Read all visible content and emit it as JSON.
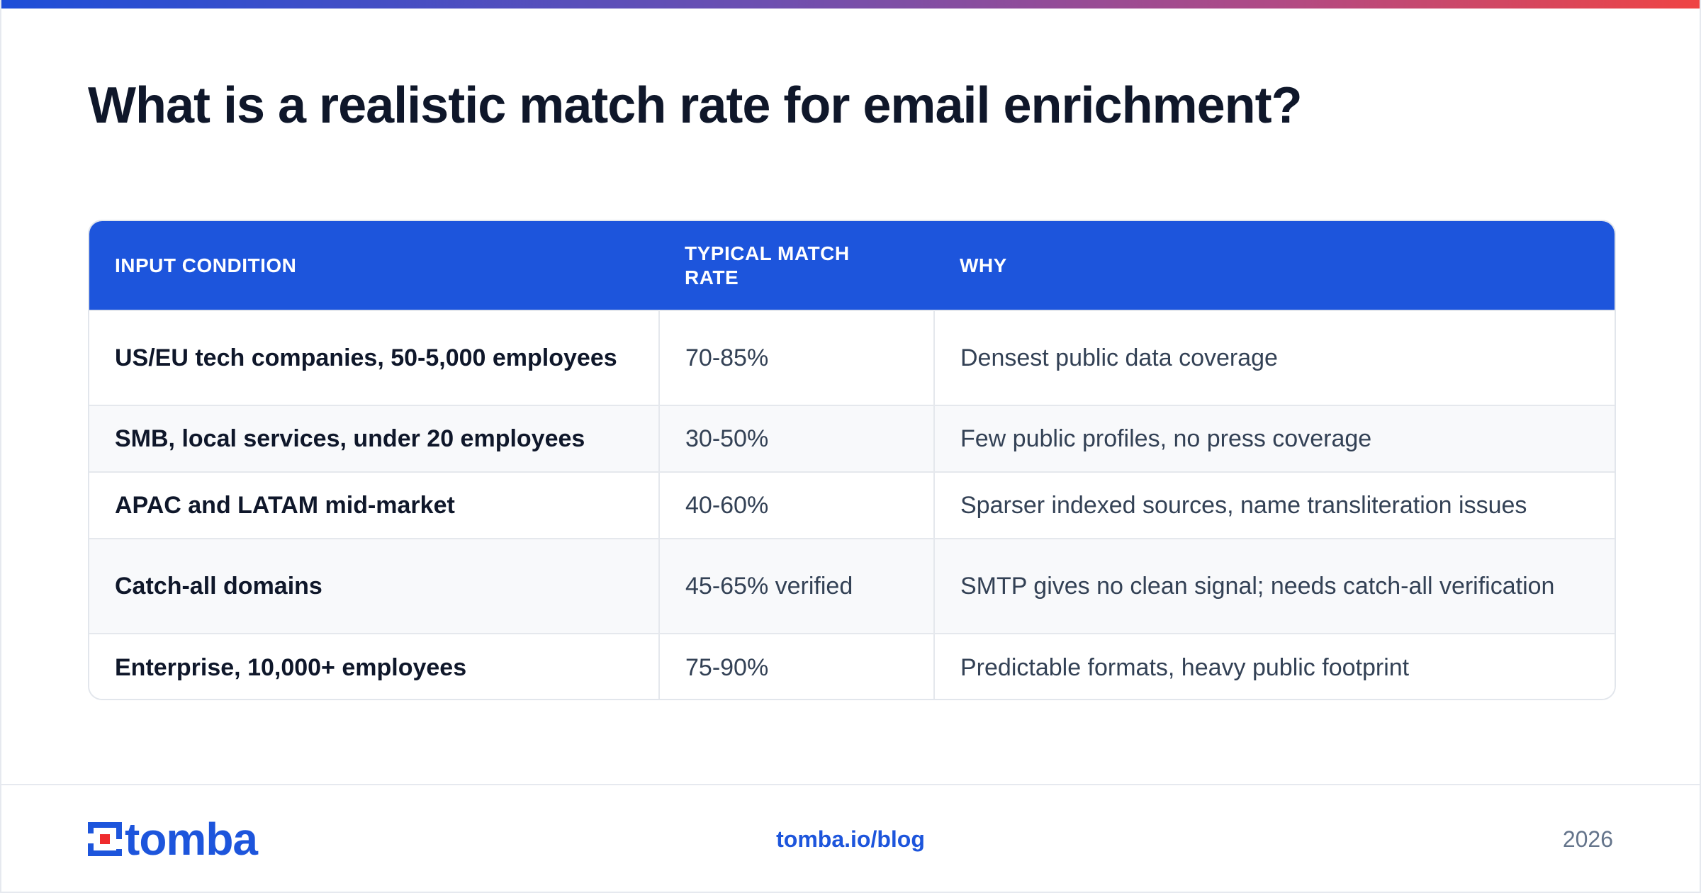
{
  "colors": {
    "accent": "#1d55dc",
    "title": "#0f172a",
    "body_text": "#334155",
    "muted": "#64748b",
    "stripe": "#f8f9fb",
    "border": "#e5e8ed",
    "logo_red": "#ef2b2d"
  },
  "title": "What is a realistic match rate for email enrichment?",
  "table": {
    "headers": [
      "INPUT CONDITION",
      "TYPICAL MATCH RATE",
      "WHY"
    ],
    "rows": [
      {
        "condition": "US/EU tech companies, 50-5,000 employees",
        "rate": "70-85%",
        "why": "Densest public data coverage"
      },
      {
        "condition": "SMB, local services, under 20 employees",
        "rate": "30-50%",
        "why": "Few public profiles, no press coverage"
      },
      {
        "condition": "APAC and LATAM mid-market",
        "rate": "40-60%",
        "why": "Sparser indexed sources, name transliteration issues"
      },
      {
        "condition": "Catch-all domains",
        "rate": "45-65% verified",
        "why": "SMTP gives no clean signal; needs catch-all verification"
      },
      {
        "condition": "Enterprise, 10,000+ employees",
        "rate": "75-90%",
        "why": "Predictable formats, heavy public footprint"
      }
    ]
  },
  "footer": {
    "logo_icon": "tomba-logo-icon",
    "brand": "tomba",
    "link": "tomba.io/blog",
    "year": "2026"
  }
}
